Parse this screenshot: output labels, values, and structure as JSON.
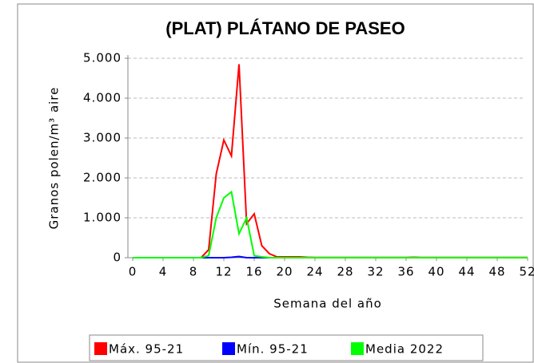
{
  "chart_data": {
    "type": "line",
    "title": "(PLAT)  PLÁTANO DE PASEO",
    "xlabel": "Semana del año",
    "ylabel": "Granos polen/m³ aire",
    "x": [
      0,
      1,
      2,
      3,
      4,
      5,
      6,
      7,
      8,
      9,
      10,
      11,
      12,
      13,
      14,
      15,
      16,
      17,
      18,
      19,
      20,
      21,
      22,
      23,
      24,
      25,
      26,
      27,
      28,
      29,
      30,
      31,
      32,
      33,
      34,
      35,
      36,
      37,
      38,
      39,
      40,
      41,
      42,
      43,
      44,
      45,
      46,
      47,
      48,
      49,
      50,
      51,
      52
    ],
    "series": [
      {
        "name": "Máx. 95-21",
        "color": "#ff0000",
        "values": [
          0,
          0,
          0,
          0,
          0,
          0,
          0,
          0,
          0,
          0,
          200,
          2100,
          2950,
          2550,
          4850,
          850,
          1100,
          300,
          100,
          20,
          20,
          20,
          20,
          10,
          5,
          5,
          5,
          5,
          5,
          5,
          5,
          5,
          5,
          5,
          5,
          5,
          5,
          10,
          5,
          5,
          5,
          5,
          5,
          5,
          5,
          5,
          5,
          5,
          5,
          5,
          5,
          5,
          5
        ]
      },
      {
        "name": "Mín. 95-21",
        "color": "#0000ff",
        "values": [
          0,
          0,
          0,
          0,
          0,
          0,
          0,
          0,
          0,
          0,
          0,
          0,
          0,
          10,
          30,
          0,
          0,
          0,
          0,
          0,
          0,
          0,
          0,
          0,
          0,
          0,
          0,
          0,
          0,
          0,
          0,
          0,
          0,
          0,
          0,
          0,
          0,
          0,
          0,
          0,
          0,
          0,
          0,
          0,
          0,
          0,
          0,
          0,
          0,
          0,
          0,
          0,
          0
        ]
      },
      {
        "name": "Media 2022",
        "color": "#00ff00",
        "values": [
          0,
          0,
          0,
          0,
          0,
          0,
          0,
          0,
          0,
          0,
          50,
          1000,
          1500,
          1650,
          600,
          1000,
          50,
          20,
          0,
          0,
          0,
          0,
          0,
          0,
          0,
          0,
          0,
          0,
          0,
          0,
          0,
          0,
          0,
          0,
          0,
          0,
          0,
          0,
          0,
          0,
          0,
          0,
          0,
          0,
          0,
          0,
          0,
          0,
          0,
          0,
          0,
          0,
          0
        ]
      }
    ],
    "xlim": [
      0,
      52
    ],
    "xticks": [
      0,
      4,
      8,
      12,
      16,
      20,
      24,
      28,
      32,
      36,
      40,
      44,
      48,
      52
    ],
    "ylim": [
      0,
      5000
    ],
    "yticks": [
      0,
      {
        "value": 1000,
        "label": "1.000"
      },
      {
        "value": 2000,
        "label": "2.000"
      },
      {
        "value": 3000,
        "label": "3.000"
      },
      {
        "value": 4000,
        "label": "4.000"
      },
      {
        "value": 5000,
        "label": "5.000"
      }
    ],
    "grid": true,
    "legend": "bottom"
  }
}
